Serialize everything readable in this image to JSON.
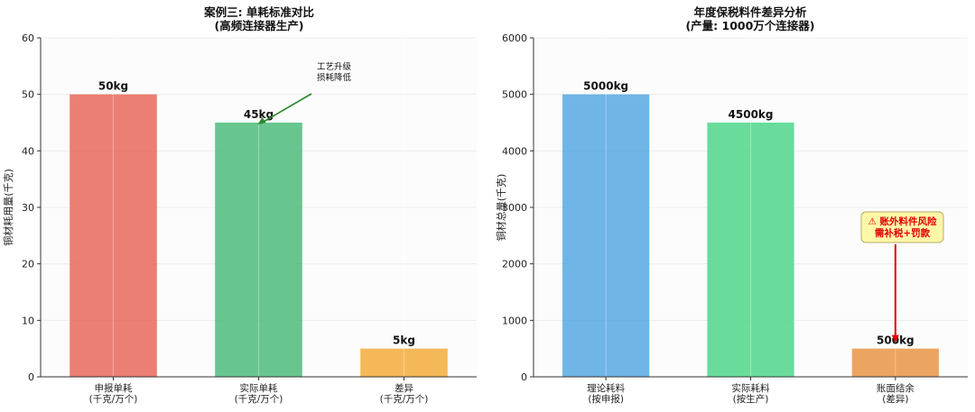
{
  "chart_data": [
    {
      "type": "bar",
      "title": [
        "案例三: 单耗标准对比",
        "(高频连接器生产)"
      ],
      "ylabel": "铜材耗用量(千克)",
      "categories": [
        [
          "申报单耗",
          "(千克/万个)"
        ],
        [
          "实际单耗",
          "(千克/万个)"
        ],
        [
          "差异",
          "(千克/万个)"
        ]
      ],
      "values": [
        50,
        45,
        5
      ],
      "value_labels": [
        "50kg",
        "45kg",
        "5kg"
      ],
      "colors": [
        "#e8685a",
        "#4fbb7c",
        "#f3ac3b"
      ],
      "ylim": [
        0,
        60
      ],
      "yticks": [
        "0",
        "10",
        "20",
        "30",
        "40",
        "50",
        "60"
      ],
      "grid": true,
      "annotation": {
        "lines": [
          "工艺升级",
          "损耗降低"
        ],
        "color": "#2a8a2a",
        "points_to": 1
      }
    },
    {
      "type": "bar",
      "title": [
        "年度保税料件差异分析",
        "(产量: 1000万个连接器)"
      ],
      "ylabel": "铜材总量(千克)",
      "categories": [
        [
          "理论耗料",
          "(按申报)"
        ],
        [
          "实际耗料",
          "(按生产)"
        ],
        [
          "账面结余",
          "(差异)"
        ]
      ],
      "values": [
        5000,
        4500,
        500
      ],
      "value_labels": [
        "5000kg",
        "4500kg",
        "500kg"
      ],
      "colors": [
        "#56a8e0",
        "#4fd68a",
        "#e99544"
      ],
      "ylim": [
        0,
        6000
      ],
      "yticks": [
        "0",
        "1000",
        "2000",
        "3000",
        "4000",
        "5000",
        "6000"
      ],
      "grid": true,
      "annotation": {
        "lines": [
          "⚠ 账外料件风险",
          "需补税+罚款"
        ],
        "color": "#e00000",
        "box_fill": "#fff7a8",
        "points_to": 2
      }
    }
  ]
}
